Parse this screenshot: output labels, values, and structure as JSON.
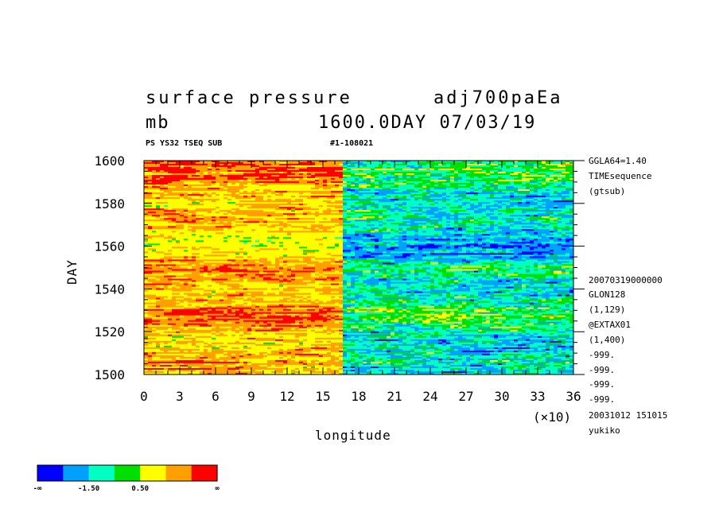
{
  "header": {
    "title": "surface pressure",
    "var_name": "adj700paEa",
    "units": "mb",
    "time_label": "1600.0DAY 07/03/19",
    "subtitle": "PS YS32 TSEQ SUB",
    "run_id": "#1-108021"
  },
  "side_info": [
    "GGLA64=1.40",
    "TIMEsequence",
    "(gtsub)",
    "20070319000000",
    "GLON128",
    "(1,129)",
    "@EXTAX01",
    "(1,400)",
    "-999.",
    "-999.",
    "-999.",
    "-999.",
    "20031012 151015",
    "yukiko"
  ],
  "chart_data": {
    "type": "heatmap",
    "title": "surface pressure",
    "xlabel": "longitude",
    "ylabel": "DAY",
    "x_scale_label": "(×10)",
    "x_ticks": [
      "0",
      "3",
      "6",
      "9",
      "12",
      "15",
      "18",
      "21",
      "24",
      "27",
      "30",
      "33",
      "36"
    ],
    "xlim": [
      0,
      36
    ],
    "y_ticks": [
      "1500",
      "1520",
      "1540",
      "1560",
      "1580",
      "1600"
    ],
    "ylim": [
      1500,
      1600
    ],
    "colorbar": {
      "colors": [
        "#0000ff",
        "#00a0ff",
        "#00ffc0",
        "#00e000",
        "#ffff00",
        "#ffa000",
        "#ff0000"
      ],
      "labels": [
        "-∞",
        "-1.50",
        "0.50",
        "∞"
      ]
    },
    "regions": [
      {
        "lon_range": [
          0,
          16.5
        ],
        "description_level": "mostly yellow/green with orange and red streaks"
      },
      {
        "lon_range": [
          16.5,
          36
        ],
        "description_level": "mostly green/cyan with blue streaks"
      }
    ]
  }
}
